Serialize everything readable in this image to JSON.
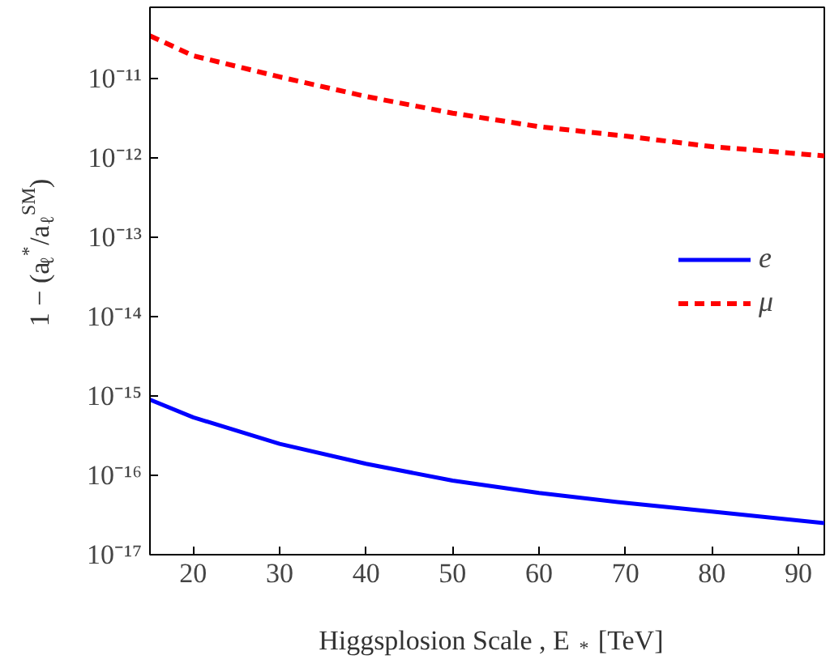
{
  "chart_data": {
    "type": "line",
    "xlabel": "Higgsplosion Scale ,  E$_{*}$ [TeV]",
    "ylabel": "1 − (a$_{ℓ}$$^{*}$/a$_{ℓ}$$^{SM}$)",
    "x": [
      15,
      20,
      30,
      40,
      50,
      60,
      70,
      80,
      93
    ],
    "series": [
      {
        "name": "e",
        "color": "#0000ff",
        "line_style": "solid",
        "values": [
          9e-16,
          5.4e-16,
          2.5e-16,
          1.4e-16,
          8.6e-17,
          6e-17,
          4.5e-17,
          3.5e-17,
          2.5e-17
        ]
      },
      {
        "name": "μ",
        "color": "#ff0000",
        "line_style": "dashed",
        "values": [
          3.5e-11,
          1.96e-11,
          1.06e-11,
          6e-12,
          3.7e-12,
          2.5e-12,
          1.9e-12,
          1.4e-12,
          1.07e-12
        ]
      }
    ],
    "log": "y",
    "xlim": [
      15,
      93
    ],
    "ylim": [
      1e-17,
      8e-11
    ],
    "xticks": [
      20,
      30,
      40,
      50,
      60,
      70,
      80,
      90
    ],
    "yticks": [
      {
        "value": 1e-17,
        "label": "10⁻¹⁷"
      },
      {
        "value": 1e-16,
        "label": "10⁻¹⁶"
      },
      {
        "value": 1e-15,
        "label": "10⁻¹⁵"
      },
      {
        "value": 1e-14,
        "label": "10⁻¹⁴"
      },
      {
        "value": 1e-13,
        "label": "10⁻¹³"
      },
      {
        "value": 1e-12,
        "label": "10⁻¹²"
      },
      {
        "value": 1e-11,
        "label": "10⁻¹¹"
      }
    ],
    "grid": false,
    "legend": "right"
  }
}
